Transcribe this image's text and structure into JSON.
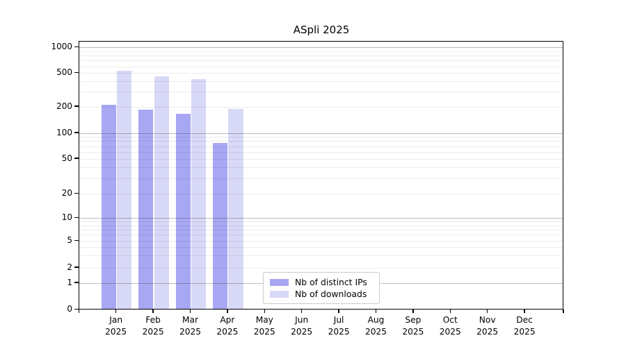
{
  "chart_data": {
    "type": "bar",
    "title": "ASpli 2025",
    "year_label": "2025",
    "categories": [
      "Jan",
      "Feb",
      "Mar",
      "Apr",
      "May",
      "Jun",
      "Jul",
      "Aug",
      "Sep",
      "Oct",
      "Nov",
      "Dec"
    ],
    "series": [
      {
        "name": "Nb of distinct IPs",
        "color": "#a7a7f3",
        "values": [
          210,
          186,
          166,
          77,
          null,
          null,
          null,
          null,
          null,
          null,
          null,
          null
        ]
      },
      {
        "name": "Nb of downloads",
        "color": "#d8d8f7",
        "values": [
          540,
          460,
          426,
          188,
          null,
          null,
          null,
          null,
          null,
          null,
          null,
          null
        ]
      }
    ],
    "y_axis": {
      "scale": "log-like (compressed linear segment from 0 to 1)",
      "ticks": [
        0,
        1,
        2,
        5,
        10,
        20,
        50,
        100,
        200,
        500,
        1000
      ],
      "major_gridline_values": [
        1,
        10,
        100,
        1000
      ],
      "ylim": [
        0,
        1000
      ]
    },
    "x_axis": {
      "months_shown": 12,
      "tick_style": "tick at each month center plus plot corners"
    },
    "grid": "horizontal, minor log subdivisions",
    "legend_position": "bottom-center inside plot",
    "colors": {
      "frame": "#000000",
      "major_grid": "#b3b3b3",
      "minor_grid": "#ececec",
      "legend_border": "#cccccc",
      "background": "#ffffff"
    }
  }
}
